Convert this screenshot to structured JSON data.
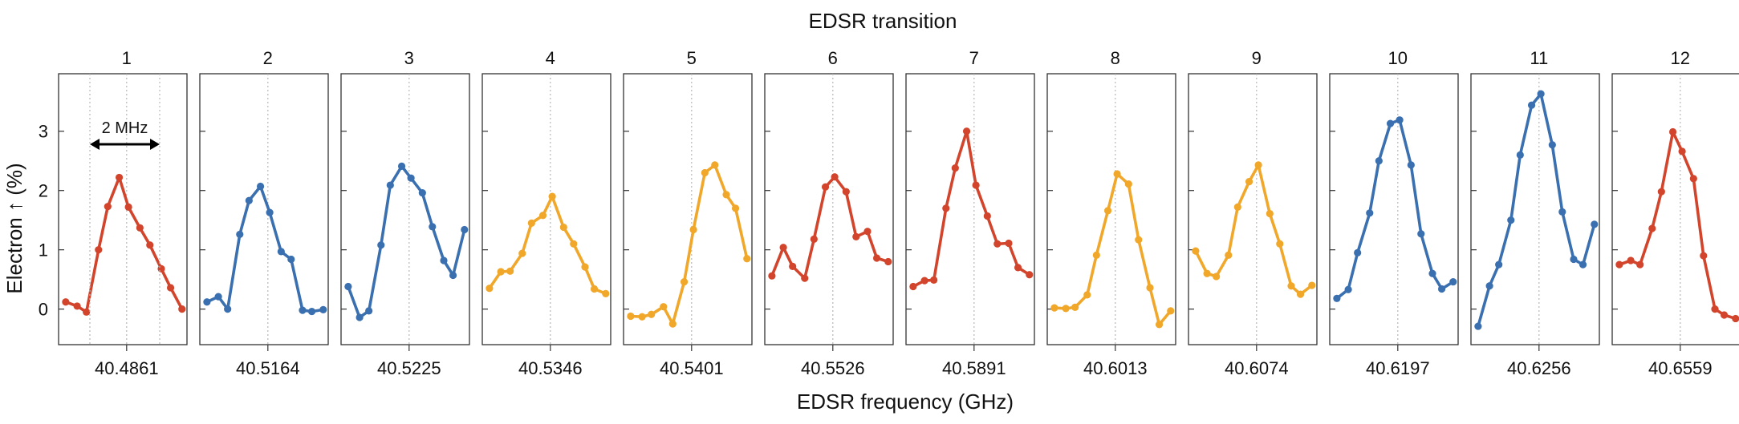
{
  "chart_data": {
    "type": "line",
    "title": "EDSR transition",
    "xlabel": "EDSR frequency (GHz)",
    "ylabel": "Electron ↑ (%)",
    "ylim": [
      -0.6,
      3.97
    ],
    "yticks": [
      0,
      1,
      2,
      3
    ],
    "grid": false,
    "annotation": {
      "label": "2 MHz",
      "panel": "1"
    },
    "colors": {
      "red": "#d2452c",
      "blue": "#3a6fb0",
      "orange": "#f0a72a",
      "frame": "#333333",
      "guide": "#b8b8b8"
    },
    "panels": [
      {
        "label": "1",
        "center": "40.4861",
        "color": "#d2452c",
        "values": [
          0.12,
          0.05,
          -0.05,
          1.0,
          1.73,
          2.22,
          1.72,
          1.37,
          1.08,
          0.68,
          0.36,
          0.0
        ]
      },
      {
        "label": "2",
        "center": "40.5164",
        "color": "#3a6fb0",
        "values": [
          0.12,
          0.21,
          0.0,
          1.26,
          1.83,
          2.07,
          1.63,
          0.97,
          0.84,
          -0.02,
          -0.04,
          -0.01
        ]
      },
      {
        "label": "3",
        "center": "40.5225",
        "color": "#3a6fb0",
        "values": [
          0.38,
          -0.14,
          -0.03,
          1.08,
          2.09,
          2.41,
          2.21,
          1.96,
          1.39,
          0.82,
          0.57,
          1.34
        ]
      },
      {
        "label": "4",
        "center": "40.5346",
        "color": "#f0a72a",
        "values": [
          0.35,
          0.63,
          0.64,
          0.94,
          1.45,
          1.58,
          1.9,
          1.38,
          1.1,
          0.71,
          0.34,
          0.26
        ]
      },
      {
        "label": "5",
        "center": "40.5401",
        "color": "#f0a72a",
        "values": [
          -0.12,
          -0.13,
          -0.09,
          0.04,
          -0.25,
          0.46,
          1.34,
          2.3,
          2.43,
          1.93,
          1.7,
          0.85
        ]
      },
      {
        "label": "6",
        "center": "40.5526",
        "color": "#d2452c",
        "values": [
          0.56,
          1.04,
          0.72,
          0.52,
          1.18,
          2.06,
          2.23,
          1.98,
          1.22,
          1.31,
          0.86,
          0.8
        ]
      },
      {
        "label": "7",
        "center": "40.5891",
        "color": "#d2452c",
        "values": [
          0.38,
          0.48,
          0.49,
          1.7,
          2.38,
          3.0,
          2.09,
          1.57,
          1.1,
          1.11,
          0.7,
          0.58
        ]
      },
      {
        "label": "8",
        "center": "40.6013",
        "color": "#f0a72a",
        "values": [
          0.02,
          0.01,
          0.03,
          0.24,
          0.91,
          1.66,
          2.28,
          2.11,
          1.17,
          0.36,
          -0.26,
          -0.03
        ]
      },
      {
        "label": "9",
        "center": "40.6074",
        "color": "#f0a72a",
        "values": [
          0.98,
          0.6,
          0.55,
          0.91,
          1.72,
          2.15,
          2.43,
          1.61,
          1.1,
          0.39,
          0.25,
          0.4
        ]
      },
      {
        "label": "10",
        "center": "40.6197",
        "color": "#3a6fb0",
        "values": [
          0.18,
          0.33,
          0.95,
          1.62,
          2.5,
          3.13,
          3.19,
          2.43,
          1.27,
          0.6,
          0.34,
          0.46
        ]
      },
      {
        "label": "11",
        "center": "40.6256",
        "color": "#3a6fb0",
        "values": [
          -0.29,
          0.39,
          0.75,
          1.5,
          2.6,
          3.44,
          3.63,
          2.77,
          1.64,
          0.84,
          0.75,
          1.43
        ]
      },
      {
        "label": "12",
        "center": "40.6559",
        "color": "#d2452c",
        "values": [
          0.75,
          0.82,
          0.75,
          1.36,
          1.98,
          2.99,
          2.66,
          2.2,
          0.9,
          0.0,
          -0.1,
          -0.16
        ]
      }
    ]
  }
}
